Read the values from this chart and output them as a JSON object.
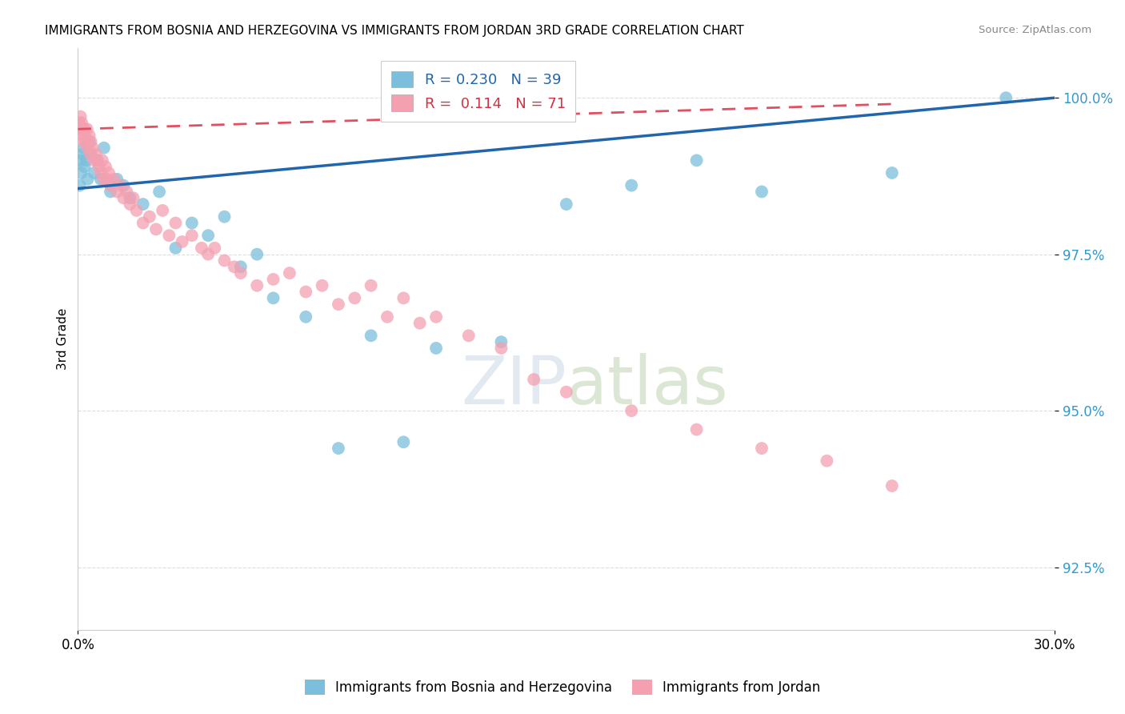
{
  "title": "IMMIGRANTS FROM BOSNIA AND HERZEGOVINA VS IMMIGRANTS FROM JORDAN 3RD GRADE CORRELATION CHART",
  "source": "Source: ZipAtlas.com",
  "xlabel_bosnia": "Immigrants from Bosnia and Herzegovina",
  "xlabel_jordan": "Immigrants from Jordan",
  "ylabel": "3rd Grade",
  "xmin": 0.0,
  "xmax": 30.0,
  "ymin": 91.5,
  "ymax": 100.8,
  "yticks": [
    92.5,
    95.0,
    97.5,
    100.0
  ],
  "ytick_labels": [
    "92.5%",
    "95.0%",
    "97.5%",
    "100.0%"
  ],
  "xtick_labels": [
    "0.0%",
    "30.0%"
  ],
  "r_bosnia": 0.23,
  "n_bosnia": 39,
  "r_jordan": 0.114,
  "n_jordan": 71,
  "color_bosnia": "#7bbfdc",
  "color_jordan": "#f4a0b0",
  "trend_color_bosnia": "#2166ac",
  "trend_color_jordan": "#e05060",
  "bosnia_x": [
    0.05,
    0.08,
    0.1,
    0.15,
    0.18,
    0.2,
    0.25,
    0.3,
    0.35,
    0.4,
    0.5,
    0.6,
    0.7,
    0.8,
    1.0,
    1.2,
    1.4,
    1.6,
    2.0,
    2.5,
    3.0,
    3.5,
    4.0,
    4.5,
    5.0,
    5.5,
    6.0,
    7.0,
    8.0,
    9.0,
    10.0,
    11.0,
    13.0,
    15.0,
    17.0,
    19.0,
    21.0,
    25.0,
    28.5
  ],
  "bosnia_y": [
    98.6,
    99.0,
    98.8,
    99.1,
    99.2,
    98.9,
    99.0,
    98.7,
    99.3,
    99.1,
    98.8,
    99.0,
    98.7,
    99.2,
    98.5,
    98.7,
    98.6,
    98.4,
    98.3,
    98.5,
    97.6,
    98.0,
    97.8,
    98.1,
    97.3,
    97.5,
    96.8,
    96.5,
    94.4,
    96.2,
    94.5,
    96.0,
    96.1,
    98.3,
    98.6,
    99.0,
    98.5,
    98.8,
    100.0
  ],
  "jordan_x": [
    0.04,
    0.06,
    0.08,
    0.1,
    0.12,
    0.14,
    0.16,
    0.18,
    0.2,
    0.22,
    0.25,
    0.28,
    0.3,
    0.35,
    0.38,
    0.4,
    0.45,
    0.5,
    0.55,
    0.6,
    0.65,
    0.7,
    0.75,
    0.8,
    0.85,
    0.9,
    0.95,
    1.0,
    1.1,
    1.2,
    1.3,
    1.4,
    1.5,
    1.6,
    1.7,
    1.8,
    2.0,
    2.2,
    2.4,
    2.6,
    2.8,
    3.0,
    3.2,
    3.5,
    3.8,
    4.0,
    4.2,
    4.5,
    4.8,
    5.0,
    5.5,
    6.0,
    6.5,
    7.0,
    7.5,
    8.0,
    8.5,
    9.0,
    9.5,
    10.0,
    10.5,
    11.0,
    12.0,
    13.0,
    14.0,
    15.0,
    17.0,
    19.0,
    21.0,
    23.0,
    25.0
  ],
  "jordan_y": [
    99.6,
    99.5,
    99.7,
    99.5,
    99.6,
    99.4,
    99.5,
    99.3,
    99.5,
    99.4,
    99.3,
    99.5,
    99.2,
    99.4,
    99.1,
    99.3,
    99.2,
    99.0,
    99.1,
    99.0,
    98.9,
    98.8,
    99.0,
    98.7,
    98.9,
    98.7,
    98.8,
    98.6,
    98.7,
    98.5,
    98.6,
    98.4,
    98.5,
    98.3,
    98.4,
    98.2,
    98.0,
    98.1,
    97.9,
    98.2,
    97.8,
    98.0,
    97.7,
    97.8,
    97.6,
    97.5,
    97.6,
    97.4,
    97.3,
    97.2,
    97.0,
    97.1,
    97.2,
    96.9,
    97.0,
    96.7,
    96.8,
    97.0,
    96.5,
    96.8,
    96.4,
    96.5,
    96.2,
    96.0,
    95.5,
    95.3,
    95.0,
    94.7,
    94.4,
    94.2,
    93.8
  ],
  "trend_bosnia_x0": 0.0,
  "trend_bosnia_y0": 98.55,
  "trend_bosnia_x1": 30.0,
  "trend_bosnia_y1": 100.0,
  "trend_jordan_x0": 0.0,
  "trend_jordan_y0": 99.5,
  "trend_jordan_x1": 25.0,
  "trend_jordan_y1": 99.9
}
